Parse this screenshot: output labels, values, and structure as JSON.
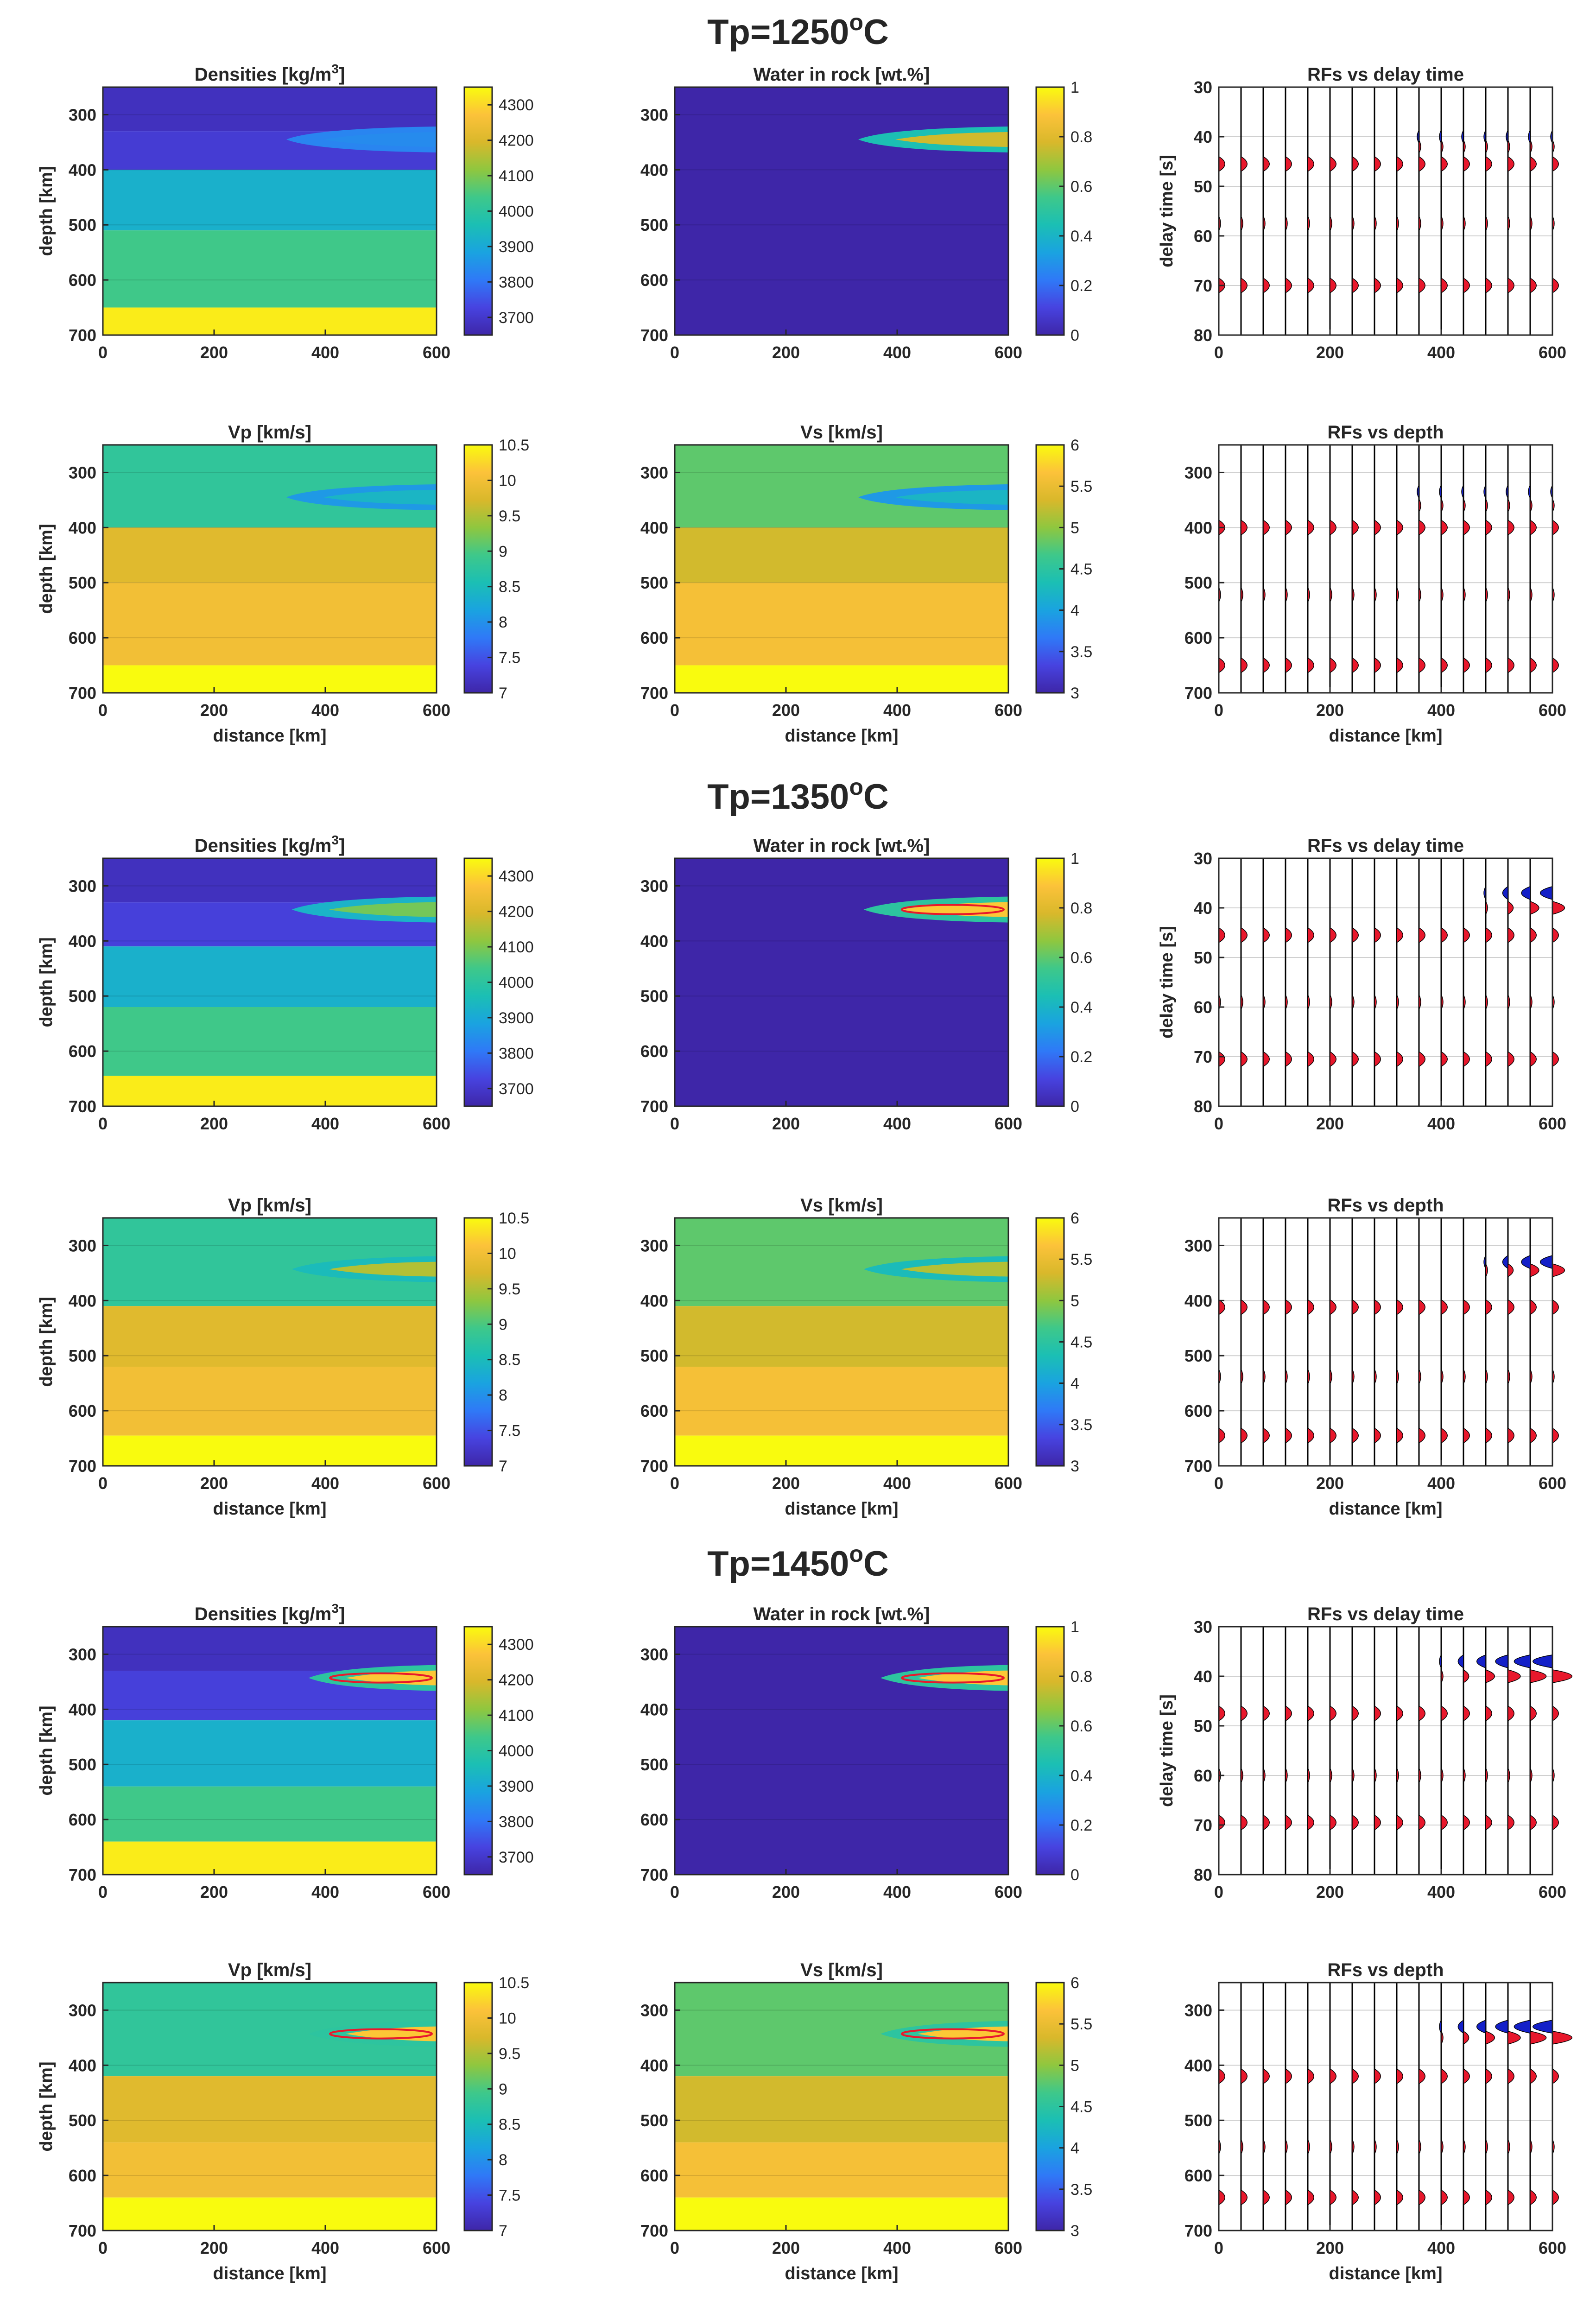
{
  "figure": {
    "colors": {
      "parula_stops": [
        "#3e26a8",
        "#4743e0",
        "#2f79f7",
        "#1aa3e0",
        "#1bbfb4",
        "#3ec88a",
        "#8fc73f",
        "#d9b82b",
        "#fcc23a",
        "#f9fb0e"
      ],
      "peak": "#e8182c",
      "trough": "#1420c8",
      "grid": "#d0d0d0",
      "axis": "#262626"
    },
    "common_labels": {
      "depth_axis": "depth [km]",
      "delay_axis": "delay time [s]",
      "distance_axis": "distance [km]"
    },
    "rows": [
      {
        "title_prefix": "Tp=1250",
        "title_sup": "o",
        "title_suffix": "C",
        "tp": 1250,
        "density": {
          "title_main": "Densities [kg/m",
          "title_sup": "3",
          "title_end": "]",
          "cbar_ticks": [
            "4300",
            "4200",
            "4100",
            "4000",
            "3900",
            "3800",
            "3700"
          ]
        },
        "water": {
          "title": "Water in rock [wt.%]",
          "cbar_ticks": [
            "1",
            "0.8",
            "0.6",
            "0.4",
            "0.2",
            "0"
          ]
        },
        "vp": {
          "title": "Vp [km/s]",
          "cbar_ticks": [
            "10.5",
            "10",
            "9.5",
            "9",
            "8.5",
            "8",
            "7.5",
            "7"
          ]
        },
        "vs": {
          "title": "Vs [km/s]",
          "cbar_ticks": [
            "6",
            "5.5",
            "5",
            "4.5",
            "4",
            "3.5",
            "3"
          ]
        },
        "rf_time_title": "RFs vs delay time",
        "rf_depth_title": "RFs vs depth"
      },
      {
        "title_prefix": "Tp=1350",
        "title_sup": "o",
        "title_suffix": "C",
        "tp": 1350,
        "density": {
          "title_main": "Densities [kg/m",
          "title_sup": "3",
          "title_end": "]",
          "cbar_ticks": [
            "4300",
            "4200",
            "4100",
            "4000",
            "3900",
            "3800",
            "3700"
          ]
        },
        "water": {
          "title": "Water in rock [wt.%]",
          "cbar_ticks": [
            "1",
            "0.8",
            "0.6",
            "0.4",
            "0.2",
            "0"
          ]
        },
        "vp": {
          "title": "Vp [km/s]",
          "cbar_ticks": [
            "10.5",
            "10",
            "9.5",
            "9",
            "8.5",
            "8",
            "7.5",
            "7"
          ]
        },
        "vs": {
          "title": "Vs [km/s]",
          "cbar_ticks": [
            "6",
            "5.5",
            "5",
            "4.5",
            "4",
            "3.5",
            "3"
          ]
        },
        "rf_time_title": "RFs vs delay time",
        "rf_depth_title": "RFs vs depth"
      },
      {
        "title_prefix": "Tp=1450",
        "title_sup": "o",
        "title_suffix": "C",
        "tp": 1450,
        "density": {
          "title_main": "Densities [kg/m",
          "title_sup": "3",
          "title_end": "]",
          "cbar_ticks": [
            "4300",
            "4200",
            "4100",
            "4000",
            "3900",
            "3800",
            "3700"
          ]
        },
        "water": {
          "title": "Water in rock [wt.%]",
          "cbar_ticks": [
            "1",
            "0.8",
            "0.6",
            "0.4",
            "0.2",
            "0"
          ]
        },
        "vp": {
          "title": "Vp [km/s]",
          "cbar_ticks": [
            "10.5",
            "10",
            "9.5",
            "9",
            "8.5",
            "8",
            "7.5",
            "7"
          ]
        },
        "vs": {
          "title": "Vs [km/s]",
          "cbar_ticks": [
            "6",
            "5.5",
            "5",
            "4.5",
            "4",
            "3.5",
            "3"
          ]
        },
        "rf_time_title": "RFs vs delay time",
        "rf_depth_title": "RFs vs depth"
      }
    ],
    "axes": {
      "x_ticks": [
        "0",
        "200",
        "400",
        "600"
      ],
      "depth_ticks": [
        "300",
        "400",
        "500",
        "600",
        "700"
      ],
      "delay_ticks": [
        "30",
        "40",
        "50",
        "60",
        "70",
        "80"
      ]
    }
  },
  "chart_data": [
    {
      "type": "heatmap",
      "title": "Densities [kg/m3]",
      "xlabel": "",
      "ylabel": "depth [km]",
      "xlim": [
        0,
        600
      ],
      "ylim": [
        250,
        700
      ],
      "clim": [
        3650,
        4350
      ],
      "rows": [
        "Tp=1250",
        "Tp=1350",
        "Tp=1450"
      ],
      "layers_by_row": [
        [
          {
            "top": 250,
            "bottom": 330,
            "value": 3680
          },
          {
            "top": 330,
            "bottom": 400,
            "value": 3710
          },
          {
            "top": 400,
            "bottom": 510,
            "value": 3920
          },
          {
            "top": 510,
            "bottom": 650,
            "value": 4040
          },
          {
            "top": 650,
            "bottom": 700,
            "value": 4330
          }
        ],
        [
          {
            "top": 250,
            "bottom": 330,
            "value": 3680
          },
          {
            "top": 330,
            "bottom": 410,
            "value": 3720
          },
          {
            "top": 410,
            "bottom": 520,
            "value": 3920
          },
          {
            "top": 520,
            "bottom": 645,
            "value": 4040
          },
          {
            "top": 645,
            "bottom": 700,
            "value": 4330
          }
        ],
        [
          {
            "top": 250,
            "bottom": 330,
            "value": 3680
          },
          {
            "top": 330,
            "bottom": 420,
            "value": 3720
          },
          {
            "top": 420,
            "bottom": 540,
            "value": 3920
          },
          {
            "top": 540,
            "bottom": 640,
            "value": 4040
          },
          {
            "top": 640,
            "bottom": 700,
            "value": 4330
          }
        ]
      ]
    },
    {
      "type": "heatmap",
      "title": "Water in rock [wt.%]",
      "xlabel": "",
      "ylabel": "depth [km]",
      "xlim": [
        0,
        600
      ],
      "ylim": [
        250,
        700
      ],
      "clim": [
        0,
        1
      ],
      "background_value": 0,
      "water_layer": [
        {
          "row": "Tp=1250",
          "depth": 345,
          "x_start": 330,
          "x_end": 600,
          "max_value": 0.85
        },
        {
          "row": "Tp=1350",
          "depth": 343,
          "x_start": 340,
          "x_end": 600,
          "max_value": 1.0
        },
        {
          "row": "Tp=1450",
          "depth": 343,
          "x_start": 370,
          "x_end": 600,
          "max_value": 1.0
        }
      ]
    },
    {
      "type": "heatmap",
      "title": "Vp [km/s]",
      "xlabel": "distance [km]",
      "ylabel": "depth [km]",
      "xlim": [
        0,
        600
      ],
      "ylim": [
        250,
        700
      ],
      "clim": [
        7,
        10.5
      ],
      "layers_by_row": [
        [
          {
            "top": 250,
            "bottom": 400,
            "value": 8.8
          },
          {
            "top": 400,
            "bottom": 500,
            "value": 9.8
          },
          {
            "top": 500,
            "bottom": 650,
            "value": 10.0
          },
          {
            "top": 650,
            "bottom": 700,
            "value": 10.5
          }
        ],
        [
          {
            "top": 250,
            "bottom": 410,
            "value": 8.8
          },
          {
            "top": 410,
            "bottom": 520,
            "value": 9.8
          },
          {
            "top": 520,
            "bottom": 645,
            "value": 10.0
          },
          {
            "top": 645,
            "bottom": 700,
            "value": 10.5
          }
        ],
        [
          {
            "top": 250,
            "bottom": 420,
            "value": 8.8
          },
          {
            "top": 420,
            "bottom": 540,
            "value": 9.8
          },
          {
            "top": 540,
            "bottom": 640,
            "value": 10.0
          },
          {
            "top": 640,
            "bottom": 700,
            "value": 10.5
          }
        ]
      ]
    },
    {
      "type": "heatmap",
      "title": "Vs [km/s]",
      "xlabel": "distance [km]",
      "ylabel": "",
      "xlim": [
        0,
        600
      ],
      "ylim": [
        250,
        700
      ],
      "clim": [
        3,
        6
      ],
      "layers_by_row": [
        [
          {
            "top": 250,
            "bottom": 400,
            "value": 4.8
          },
          {
            "top": 400,
            "bottom": 500,
            "value": 5.3
          },
          {
            "top": 500,
            "bottom": 650,
            "value": 5.6
          },
          {
            "top": 650,
            "bottom": 700,
            "value": 6.0
          }
        ],
        [
          {
            "top": 250,
            "bottom": 410,
            "value": 4.8
          },
          {
            "top": 410,
            "bottom": 520,
            "value": 5.3
          },
          {
            "top": 520,
            "bottom": 645,
            "value": 5.6
          },
          {
            "top": 645,
            "bottom": 700,
            "value": 6.0
          }
        ],
        [
          {
            "top": 250,
            "bottom": 420,
            "value": 4.8
          },
          {
            "top": 420,
            "bottom": 540,
            "value": 5.3
          },
          {
            "top": 540,
            "bottom": 640,
            "value": 5.6
          },
          {
            "top": 640,
            "bottom": 700,
            "value": 6.0
          }
        ]
      ]
    },
    {
      "type": "line",
      "title": "RFs vs delay time",
      "xlabel": "",
      "ylabel": "delay time [s]",
      "xlim": [
        0,
        600
      ],
      "ylim": [
        30,
        80
      ],
      "trace_x": [
        0,
        40,
        80,
        120,
        160,
        200,
        240,
        280,
        320,
        360,
        400,
        440,
        480,
        520,
        560,
        600
      ],
      "arrivals_by_row": [
        [
          {
            "t": 45.5,
            "amp": 1.0
          },
          {
            "t": 57.5,
            "amp": 0.3
          },
          {
            "t": 70,
            "amp": 1.0
          }
        ],
        [
          {
            "t": 45.5,
            "amp": 1.0
          },
          {
            "t": 59,
            "amp": 0.3
          },
          {
            "t": 70.5,
            "amp": 1.0
          }
        ],
        [
          {
            "t": 47.5,
            "amp": 1.0
          },
          {
            "t": 60,
            "amp": 0.3
          },
          {
            "t": 69.5,
            "amp": 1.0
          }
        ]
      ],
      "water_signal_by_row": [
        {
          "x_start": 360,
          "trough_t": 40,
          "peak_t": 42,
          "max_trough": 0.3,
          "max_peak": 0.3
        },
        {
          "x_start": 480,
          "trough_t": 37,
          "peak_t": 40,
          "max_trough": 2.0,
          "max_peak": 2.0
        },
        {
          "x_start": 400,
          "trough_t": 37,
          "peak_t": 40,
          "max_trough": 3.2,
          "max_peak": 3.2
        }
      ]
    },
    {
      "type": "line",
      "title": "RFs vs depth",
      "xlabel": "distance [km]",
      "ylabel": "",
      "xlim": [
        0,
        600
      ],
      "ylim": [
        250,
        700
      ],
      "trace_x": [
        0,
        40,
        80,
        120,
        160,
        200,
        240,
        280,
        320,
        360,
        400,
        440,
        480,
        520,
        560,
        600
      ],
      "arrivals_by_row": [
        [
          {
            "d": 400,
            "amp": 1.0
          },
          {
            "d": 522,
            "amp": 0.3
          },
          {
            "d": 650,
            "amp": 1.0
          }
        ],
        [
          {
            "d": 412,
            "amp": 1.0
          },
          {
            "d": 538,
            "amp": 0.3
          },
          {
            "d": 645,
            "amp": 1.0
          }
        ],
        [
          {
            "d": 420,
            "amp": 1.0
          },
          {
            "d": 548,
            "amp": 0.3
          },
          {
            "d": 640,
            "amp": 1.0
          }
        ]
      ],
      "water_signal_by_row": [
        {
          "x_start": 360,
          "trough_d": 335,
          "peak_d": 360,
          "max_trough": 0.3,
          "max_peak": 0.3
        },
        {
          "x_start": 480,
          "trough_d": 330,
          "peak_d": 345,
          "max_trough": 2.0,
          "max_peak": 2.0
        },
        {
          "x_start": 400,
          "trough_d": 330,
          "peak_d": 350,
          "max_trough": 3.2,
          "max_peak": 3.2
        }
      ]
    }
  ]
}
